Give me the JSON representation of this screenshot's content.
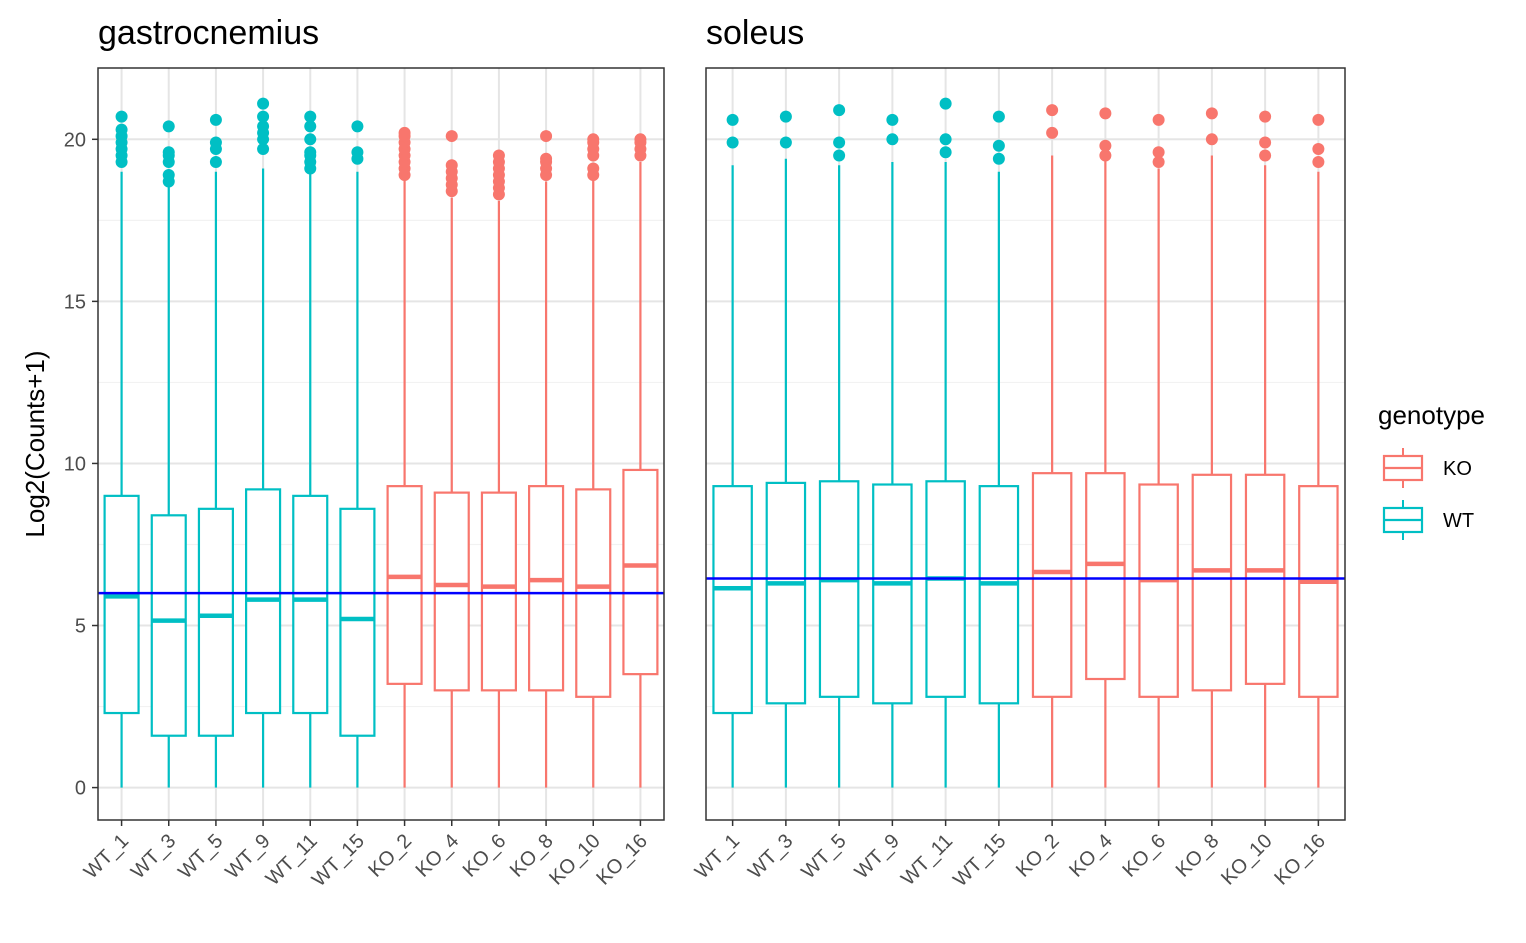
{
  "chart_data": {
    "type": "boxplot",
    "ylabel": "Log2(Counts+1)",
    "ylim": [
      -1,
      22.2
    ],
    "yticks": [
      0,
      5,
      10,
      15,
      20
    ],
    "grid": true,
    "legend": {
      "title": "genotype",
      "position": "right",
      "entries": [
        {
          "name": "KO",
          "color": "#F8766D"
        },
        {
          "name": "WT",
          "color": "#00BFC4"
        }
      ]
    },
    "facets": [
      {
        "title": "gastrocnemius",
        "reference_line": 6.0,
        "categories": [
          "WT_1",
          "WT_3",
          "WT_5",
          "WT_9",
          "WT_11",
          "WT_15",
          "KO_2",
          "KO_4",
          "KO_6",
          "KO_8",
          "KO_10",
          "KO_16"
        ],
        "boxes": [
          {
            "sample": "WT_1",
            "genotype": "WT",
            "min": 0,
            "q1": 2.3,
            "median": 5.9,
            "q3": 9.0,
            "max": 19.0,
            "outliers": [
              19.3,
              19.5,
              19.7,
              19.9,
              20.1,
              20.3,
              20.7
            ]
          },
          {
            "sample": "WT_3",
            "genotype": "WT",
            "min": 0,
            "q1": 1.6,
            "median": 5.15,
            "q3": 8.4,
            "max": 18.6,
            "outliers": [
              18.7,
              18.9,
              19.3,
              19.5,
              19.6,
              20.4
            ]
          },
          {
            "sample": "WT_5",
            "genotype": "WT",
            "min": 0,
            "q1": 1.6,
            "median": 5.3,
            "q3": 8.6,
            "max": 19.0,
            "outliers": [
              19.3,
              19.7,
              19.9,
              20.6
            ]
          },
          {
            "sample": "WT_9",
            "genotype": "WT",
            "min": 0,
            "q1": 2.3,
            "median": 5.8,
            "q3": 9.2,
            "max": 19.1,
            "outliers": [
              19.7,
              20.0,
              20.2,
              20.4,
              20.7,
              21.1
            ]
          },
          {
            "sample": "WT_11",
            "genotype": "WT",
            "min": 0,
            "q1": 2.3,
            "median": 5.8,
            "q3": 9.0,
            "max": 19.0,
            "outliers": [
              19.1,
              19.3,
              19.5,
              19.6,
              20.0,
              20.4,
              20.7
            ]
          },
          {
            "sample": "WT_15",
            "genotype": "WT",
            "min": 0,
            "q1": 1.6,
            "median": 5.2,
            "q3": 8.6,
            "max": 19.0,
            "outliers": [
              19.4,
              19.6,
              20.4
            ]
          },
          {
            "sample": "KO_2",
            "genotype": "KO",
            "min": 0,
            "q1": 3.2,
            "median": 6.5,
            "q3": 9.3,
            "max": 18.8,
            "outliers": [
              18.9,
              19.1,
              19.3,
              19.5,
              19.7,
              19.9,
              20.1,
              20.2
            ]
          },
          {
            "sample": "KO_4",
            "genotype": "KO",
            "min": 0,
            "q1": 3.0,
            "median": 6.25,
            "q3": 9.1,
            "max": 18.2,
            "outliers": [
              18.4,
              18.6,
              18.8,
              19.0,
              19.2,
              20.1
            ]
          },
          {
            "sample": "KO_6",
            "genotype": "KO",
            "min": 0,
            "q1": 3.0,
            "median": 6.2,
            "q3": 9.1,
            "max": 18.1,
            "outliers": [
              18.3,
              18.5,
              18.7,
              18.9,
              19.1,
              19.3,
              19.5
            ]
          },
          {
            "sample": "KO_8",
            "genotype": "KO",
            "min": 0,
            "q1": 3.0,
            "median": 6.4,
            "q3": 9.3,
            "max": 18.7,
            "outliers": [
              18.9,
              19.1,
              19.3,
              19.4,
              20.1
            ]
          },
          {
            "sample": "KO_10",
            "genotype": "KO",
            "min": 0,
            "q1": 2.8,
            "median": 6.2,
            "q3": 9.2,
            "max": 18.8,
            "outliers": [
              18.9,
              19.1,
              19.5,
              19.7,
              19.9,
              20.0
            ]
          },
          {
            "sample": "KO_16",
            "genotype": "KO",
            "min": 0,
            "q1": 3.5,
            "median": 6.85,
            "q3": 9.8,
            "max": 19.3,
            "outliers": [
              19.5,
              19.7,
              19.9,
              20.0
            ]
          }
        ]
      },
      {
        "title": "soleus",
        "reference_line": 6.45,
        "categories": [
          "WT_1",
          "WT_3",
          "WT_5",
          "WT_9",
          "WT_11",
          "WT_15",
          "KO_2",
          "KO_4",
          "KO_6",
          "KO_8",
          "KO_10",
          "KO_16"
        ],
        "boxes": [
          {
            "sample": "WT_1",
            "genotype": "WT",
            "min": 0,
            "q1": 2.3,
            "median": 6.15,
            "q3": 9.3,
            "max": 19.2,
            "outliers": [
              19.9,
              20.6
            ]
          },
          {
            "sample": "WT_3",
            "genotype": "WT",
            "min": 0,
            "q1": 2.6,
            "median": 6.3,
            "q3": 9.4,
            "max": 19.4,
            "outliers": [
              19.9,
              20.7
            ]
          },
          {
            "sample": "WT_5",
            "genotype": "WT",
            "min": 0,
            "q1": 2.8,
            "median": 6.4,
            "q3": 9.45,
            "max": 19.2,
            "outliers": [
              19.5,
              19.9,
              20.9
            ]
          },
          {
            "sample": "WT_9",
            "genotype": "WT",
            "min": 0,
            "q1": 2.6,
            "median": 6.3,
            "q3": 9.35,
            "max": 19.3,
            "outliers": [
              20.0,
              20.6
            ]
          },
          {
            "sample": "WT_11",
            "genotype": "WT",
            "min": 0,
            "q1": 2.8,
            "median": 6.45,
            "q3": 9.45,
            "max": 19.3,
            "outliers": [
              19.6,
              20.0,
              21.1
            ]
          },
          {
            "sample": "WT_15",
            "genotype": "WT",
            "min": 0,
            "q1": 2.6,
            "median": 6.3,
            "q3": 9.3,
            "max": 19.0,
            "outliers": [
              19.4,
              19.8,
              20.7
            ]
          },
          {
            "sample": "KO_2",
            "genotype": "KO",
            "min": 0,
            "q1": 2.8,
            "median": 6.65,
            "q3": 9.7,
            "max": 19.5,
            "outliers": [
              20.2,
              20.9
            ]
          },
          {
            "sample": "KO_4",
            "genotype": "KO",
            "min": 0,
            "q1": 3.35,
            "median": 6.9,
            "q3": 9.7,
            "max": 19.4,
            "outliers": [
              19.5,
              19.8,
              20.8
            ]
          },
          {
            "sample": "KO_6",
            "genotype": "KO",
            "min": 0,
            "q1": 2.8,
            "median": 6.4,
            "q3": 9.35,
            "max": 19.1,
            "outliers": [
              19.3,
              19.6,
              20.6
            ]
          },
          {
            "sample": "KO_8",
            "genotype": "KO",
            "min": 0,
            "q1": 3.0,
            "median": 6.7,
            "q3": 9.65,
            "max": 19.5,
            "outliers": [
              20.0,
              20.8
            ]
          },
          {
            "sample": "KO_10",
            "genotype": "KO",
            "min": 0,
            "q1": 3.2,
            "median": 6.7,
            "q3": 9.65,
            "max": 19.2,
            "outliers": [
              19.5,
              19.9,
              20.7
            ]
          },
          {
            "sample": "KO_16",
            "genotype": "KO",
            "min": 0,
            "q1": 2.8,
            "median": 6.35,
            "q3": 9.3,
            "max": 19.0,
            "outliers": [
              19.3,
              19.7,
              20.6
            ]
          }
        ]
      }
    ]
  },
  "colors": {
    "WT": "#00BFC4",
    "KO": "#F8766D",
    "reference_line": "#0000FF",
    "grid_major": "#E5E5E5",
    "grid_minor": "#F2F2F2",
    "panel_border": "#333333"
  }
}
